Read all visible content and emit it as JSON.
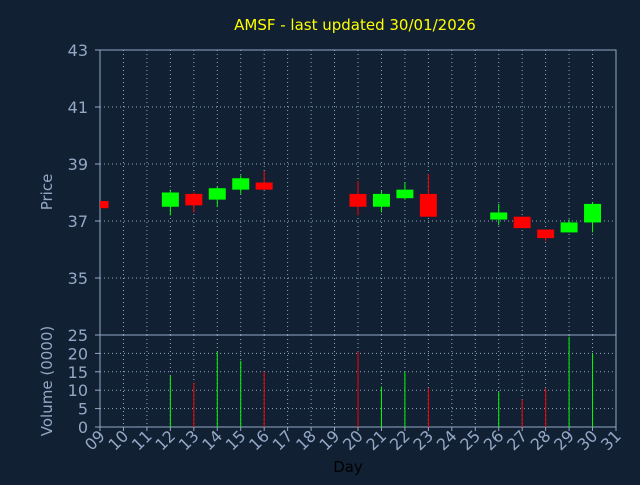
{
  "chart_data": {
    "type": "candlestick",
    "title": "AMSF - last updated 30/01/2026",
    "xlabel": "Day",
    "price_panel": {
      "ylabel": "Price",
      "ylim": [
        33,
        43
      ],
      "yticks": [
        35,
        37,
        39,
        41,
        43
      ]
    },
    "volume_panel": {
      "ylabel": "Volume (0000)",
      "ylim": [
        0,
        25
      ],
      "yticks": [
        0,
        5,
        10,
        15,
        20,
        25
      ]
    },
    "x_ticks": [
      "09",
      "10",
      "11",
      "12",
      "13",
      "14",
      "15",
      "16",
      "17",
      "18",
      "19",
      "20",
      "21",
      "22",
      "23",
      "24",
      "25",
      "26",
      "27",
      "28",
      "29",
      "30",
      "31"
    ],
    "candles": [
      {
        "day": "09",
        "open": 37.7,
        "close": 37.45,
        "high": 37.7,
        "low": 37.45,
        "volume": 0
      },
      {
        "day": "12",
        "open": 37.5,
        "close": 38.0,
        "high": 38.1,
        "low": 37.2,
        "volume": 14
      },
      {
        "day": "13",
        "open": 37.95,
        "close": 37.55,
        "high": 38.0,
        "low": 37.3,
        "volume": 12
      },
      {
        "day": "14",
        "open": 37.75,
        "close": 38.15,
        "high": 38.2,
        "low": 37.5,
        "volume": 20.5
      },
      {
        "day": "15",
        "open": 38.1,
        "close": 38.5,
        "high": 38.6,
        "low": 37.95,
        "volume": 18
      },
      {
        "day": "16",
        "open": 38.35,
        "close": 38.1,
        "high": 38.75,
        "low": 38.1,
        "volume": 15
      },
      {
        "day": "20",
        "open": 37.95,
        "close": 37.5,
        "high": 38.4,
        "low": 37.2,
        "volume": 20.5
      },
      {
        "day": "21",
        "open": 37.5,
        "close": 37.95,
        "high": 38.05,
        "low": 37.3,
        "volume": 11
      },
      {
        "day": "22",
        "open": 37.8,
        "close": 38.1,
        "high": 38.35,
        "low": 37.75,
        "volume": 15
      },
      {
        "day": "23",
        "open": 37.95,
        "close": 37.15,
        "high": 38.65,
        "low": 37.15,
        "volume": 10.5
      },
      {
        "day": "26",
        "open": 37.05,
        "close": 37.3,
        "high": 37.6,
        "low": 36.85,
        "volume": 9.5
      },
      {
        "day": "27",
        "open": 37.15,
        "close": 36.75,
        "high": 37.15,
        "low": 36.75,
        "volume": 7.5
      },
      {
        "day": "28",
        "open": 36.7,
        "close": 36.4,
        "high": 36.7,
        "low": 36.3,
        "volume": 10.5
      },
      {
        "day": "29",
        "open": 36.6,
        "close": 36.95,
        "high": 37.05,
        "low": 36.6,
        "volume": 24.5
      },
      {
        "day": "30",
        "open": 36.95,
        "close": 37.6,
        "high": 37.65,
        "low": 36.6,
        "volume": 20
      }
    ],
    "colors": {
      "background": "#112033",
      "axis": "#94a8c5",
      "grid": "#94a8c5",
      "up": "#00ff00",
      "down": "#ff0000",
      "title": "#ffff00",
      "label": "#94a8c5",
      "xlabel": "#000000"
    },
    "grid": true
  }
}
